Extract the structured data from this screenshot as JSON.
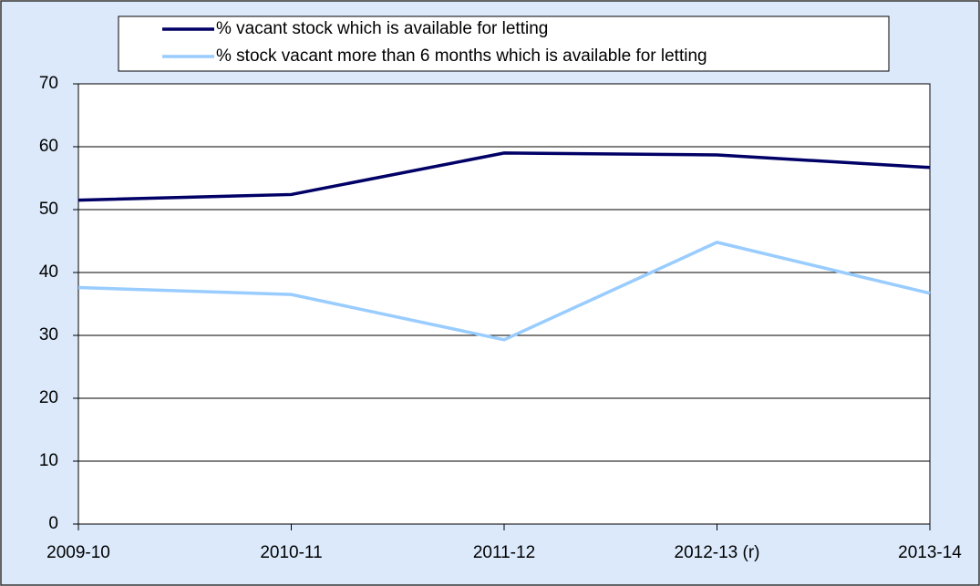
{
  "chart_data": {
    "type": "line",
    "categories": [
      "2009-10",
      "2010-11",
      "2011-12",
      "2012-13 (r)",
      "2013-14"
    ],
    "series": [
      {
        "name": "% vacant stock which is available for letting",
        "color": "#000066",
        "values": [
          51.5,
          52.4,
          59.0,
          58.7,
          56.7
        ]
      },
      {
        "name": "% stock vacant more than 6 months which is available for letting",
        "color": "#99ccff",
        "values": [
          37.6,
          36.5,
          29.3,
          44.8,
          36.7
        ]
      }
    ],
    "ylim": [
      0,
      70
    ],
    "yticks": [
      0,
      10,
      20,
      30,
      40,
      50,
      60,
      70
    ],
    "grid": true,
    "legend": "top"
  }
}
